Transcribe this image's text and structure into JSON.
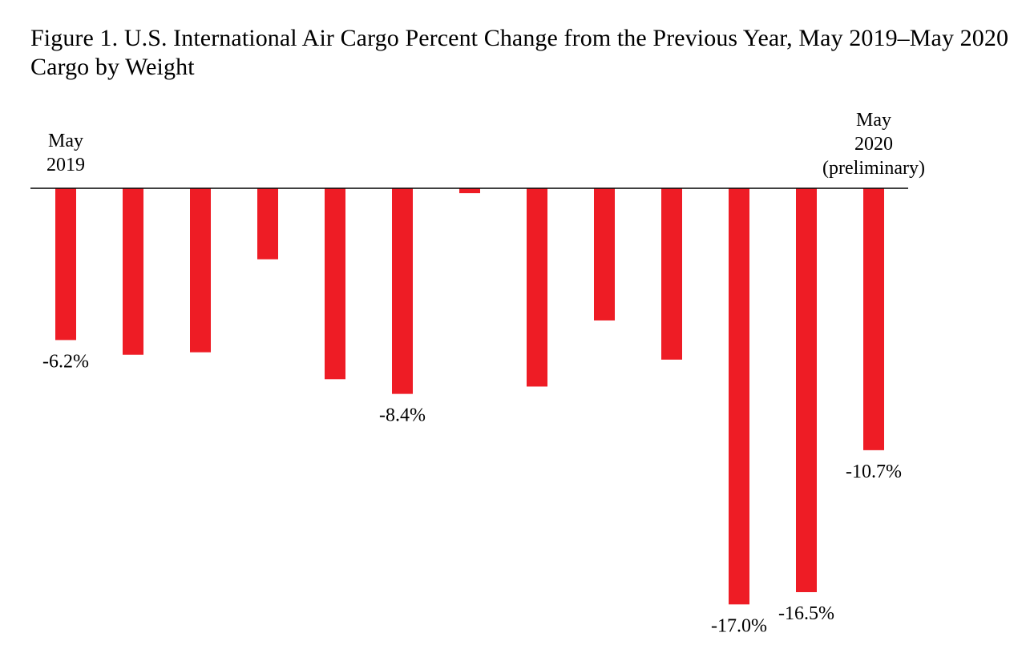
{
  "title": "Figure 1. U.S. International Air Cargo Percent Change from the Previous Year, May 2019–May 2020",
  "subtitle": "Cargo by Weight",
  "colors": {
    "bar": "#ee1c25",
    "axis": "#000000"
  },
  "chart_data": {
    "type": "bar",
    "categories": [
      "May 2019",
      "",
      "",
      "",
      "",
      "",
      "",
      "",
      "",
      "",
      "",
      "",
      "May 2020 (preliminary)"
    ],
    "values": [
      -6.2,
      -6.8,
      -6.7,
      -2.9,
      -7.8,
      -8.4,
      -0.2,
      -8.1,
      -5.4,
      -7.0,
      -17.0,
      -16.5,
      -10.7
    ],
    "first_label": [
      "May",
      "2019"
    ],
    "last_label": [
      "May",
      "2020",
      "(preliminary)"
    ],
    "data_labels": [
      "-6.2%",
      "",
      "",
      "",
      "",
      "-8.4%",
      "",
      "",
      "",
      "",
      "-17.0%",
      "-16.5%",
      "-10.7%"
    ],
    "ylim": [
      -18,
      0
    ],
    "grid": false,
    "legend": "none",
    "xlabel": "",
    "ylabel": ""
  }
}
